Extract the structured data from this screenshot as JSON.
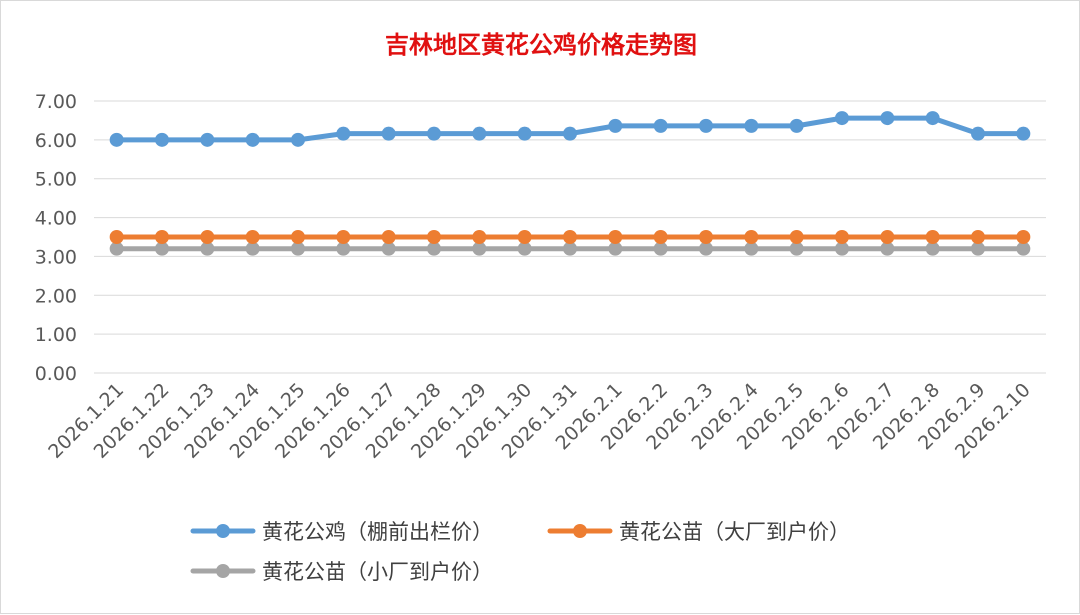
{
  "chart_data": {
    "type": "line",
    "title": "吉林地区黄花公鸡价格走势图",
    "xlabel": "",
    "ylabel": "",
    "ylim": [
      0,
      7
    ],
    "y_ticks": [
      "0.00",
      "1.00",
      "2.00",
      "3.00",
      "4.00",
      "5.00",
      "6.00",
      "7.00"
    ],
    "grid": true,
    "legend_position": "bottom",
    "categories": [
      "2026.1.21",
      "2026.1.22",
      "2026.1.23",
      "2026.1.24",
      "2026.1.25",
      "2026.1.26",
      "2026.1.27",
      "2026.1.28",
      "2026.1.29",
      "2026.1.30",
      "2026.1.31",
      "2026.2.1",
      "2026.2.2",
      "2026.2.3",
      "2026.2.4",
      "2026.2.5",
      "2026.2.6",
      "2026.2.7",
      "2026.2.8",
      "2026.2.9",
      "2026.2.10"
    ],
    "series": [
      {
        "name": "黄花公鸡（棚前出栏价）",
        "color": "#5b9bd5",
        "values": [
          6.0,
          6.0,
          6.0,
          6.0,
          6.0,
          6.16,
          6.16,
          6.16,
          6.16,
          6.16,
          6.16,
          6.36,
          6.36,
          6.36,
          6.36,
          6.36,
          6.56,
          6.56,
          6.56,
          6.16,
          6.16
        ]
      },
      {
        "name": "黄花公苗（大厂到户价）",
        "color": "#ed7d31",
        "values": [
          3.5,
          3.5,
          3.5,
          3.5,
          3.5,
          3.5,
          3.5,
          3.5,
          3.5,
          3.5,
          3.5,
          3.5,
          3.5,
          3.5,
          3.5,
          3.5,
          3.5,
          3.5,
          3.5,
          3.5,
          3.5
        ]
      },
      {
        "name": "黄花公苗（小厂到户价）",
        "color": "#a5a5a5",
        "values": [
          3.2,
          3.2,
          3.2,
          3.2,
          3.2,
          3.2,
          3.2,
          3.2,
          3.2,
          3.2,
          3.2,
          3.2,
          3.2,
          3.2,
          3.2,
          3.2,
          3.2,
          3.2,
          3.2,
          3.2,
          3.2
        ]
      }
    ]
  }
}
